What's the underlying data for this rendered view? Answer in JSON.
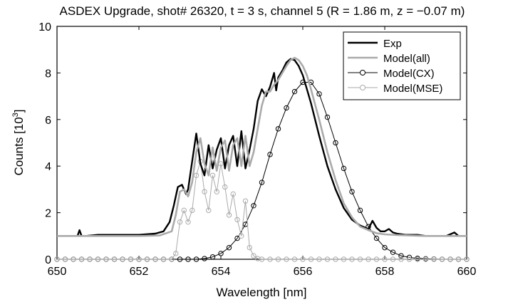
{
  "chart_data": {
    "type": "line",
    "title": "ASDEX Upgrade, shot# 26320, t = 3 s, channel 5 (R = 1.86 m, z = −0.07 m)",
    "xlabel": "Wavelength [nm]",
    "ylabel": "Counts [10",
    "ylabel_sup": "3",
    "ylabel_close": "]",
    "xlim": [
      650,
      660
    ],
    "ylim": [
      0,
      10
    ],
    "xticks": [
      650,
      652,
      654,
      656,
      658,
      660
    ],
    "yticks": [
      0,
      2,
      4,
      6,
      8,
      10
    ],
    "grid": false,
    "legend": {
      "position": "top-right"
    },
    "series": [
      {
        "name": "Exp",
        "color": "#000000",
        "marker": "none",
        "x": [
          650.0,
          650.5,
          650.55,
          650.6,
          650.7,
          651.0,
          651.5,
          652.0,
          652.4,
          652.6,
          652.75,
          652.85,
          652.95,
          653.05,
          653.15,
          653.2,
          653.3,
          653.4,
          653.5,
          653.6,
          653.7,
          653.8,
          653.9,
          654.0,
          654.1,
          654.2,
          654.3,
          654.4,
          654.5,
          654.6,
          654.7,
          654.8,
          654.9,
          655.0,
          655.1,
          655.2,
          655.3,
          655.35,
          655.4,
          655.5,
          655.6,
          655.7,
          655.8,
          655.9,
          656.0,
          656.1,
          656.2,
          656.4,
          656.6,
          656.8,
          657.0,
          657.2,
          657.4,
          657.6,
          657.7,
          657.8,
          657.9,
          658.0,
          658.1,
          658.2,
          658.3,
          658.5,
          658.8,
          659.0,
          659.3,
          659.5,
          659.7,
          659.8,
          660.0
        ],
        "y": [
          1.0,
          1.0,
          1.25,
          1.0,
          1.0,
          1.05,
          1.05,
          1.05,
          1.1,
          1.2,
          1.6,
          2.3,
          3.1,
          3.2,
          2.8,
          3.0,
          4.2,
          5.4,
          4.1,
          3.6,
          4.9,
          3.9,
          4.7,
          5.2,
          3.9,
          4.9,
          5.3,
          4.0,
          5.5,
          3.9,
          4.7,
          5.6,
          6.8,
          7.3,
          7.0,
          7.4,
          8.0,
          7.25,
          7.8,
          8.1,
          8.45,
          8.6,
          8.55,
          8.3,
          7.9,
          7.3,
          6.7,
          5.3,
          4.0,
          3.0,
          2.2,
          1.7,
          1.45,
          1.3,
          1.65,
          1.35,
          1.2,
          1.2,
          1.3,
          1.15,
          1.1,
          1.05,
          1.05,
          1.0,
          1.0,
          1.0,
          1.15,
          1.0,
          1.0
        ]
      },
      {
        "name": "Model(all)",
        "color": "#aaaaaa",
        "marker": "none",
        "x": [
          650.0,
          651.0,
          652.0,
          652.5,
          652.8,
          652.9,
          653.0,
          653.1,
          653.2,
          653.3,
          653.4,
          653.5,
          653.6,
          653.7,
          653.8,
          653.9,
          654.0,
          654.1,
          654.2,
          654.3,
          654.4,
          654.5,
          654.6,
          654.7,
          654.8,
          654.9,
          655.0,
          655.1,
          655.2,
          655.3,
          655.4,
          655.5,
          655.6,
          655.7,
          655.8,
          655.9,
          656.0,
          656.1,
          656.2,
          656.4,
          656.6,
          656.8,
          657.0,
          657.2,
          657.4,
          657.6,
          657.8,
          658.0,
          658.3,
          658.6,
          659.0,
          659.5,
          660.0
        ],
        "y": [
          1.0,
          1.0,
          1.0,
          1.02,
          1.2,
          1.9,
          2.9,
          3.0,
          2.7,
          3.3,
          4.6,
          5.2,
          4.1,
          3.6,
          4.8,
          3.8,
          4.8,
          5.1,
          3.8,
          4.9,
          5.2,
          4.0,
          5.3,
          4.0,
          4.6,
          5.6,
          6.6,
          7.2,
          7.2,
          7.5,
          7.7,
          8.0,
          8.3,
          8.55,
          8.65,
          8.55,
          8.3,
          7.9,
          7.3,
          6.0,
          4.6,
          3.4,
          2.4,
          1.8,
          1.4,
          1.25,
          1.12,
          1.07,
          1.04,
          1.02,
          1.0,
          1.0,
          1.0
        ]
      },
      {
        "name": "Model(CX)",
        "color": "#000000",
        "marker": "circle",
        "x": [
          650.0,
          650.2,
          650.4,
          650.6,
          650.8,
          651.0,
          651.2,
          651.4,
          651.6,
          651.8,
          652.0,
          652.2,
          652.4,
          652.6,
          652.8,
          653.0,
          653.2,
          653.4,
          653.6,
          653.8,
          654.0,
          654.2,
          654.4,
          654.6,
          654.8,
          655.0,
          655.2,
          655.4,
          655.6,
          655.8,
          656.0,
          656.2,
          656.4,
          656.6,
          656.8,
          657.0,
          657.2,
          657.4,
          657.6,
          657.8,
          658.0,
          658.2,
          658.4,
          658.6,
          658.8,
          659.0,
          659.2,
          659.4,
          659.6,
          659.8,
          660.0
        ],
        "y": [
          0,
          0,
          0,
          0,
          0,
          0,
          0,
          0,
          0,
          0,
          0,
          0,
          0,
          0,
          0,
          0,
          0,
          0,
          0.03,
          0.1,
          0.25,
          0.5,
          0.9,
          1.5,
          2.3,
          3.3,
          4.5,
          5.6,
          6.5,
          7.2,
          7.6,
          7.6,
          7.1,
          6.1,
          5.0,
          3.9,
          2.9,
          2.1,
          1.4,
          0.9,
          0.5,
          0.3,
          0.15,
          0.08,
          0.04,
          0.02,
          0.01,
          0,
          0,
          0,
          0
        ]
      },
      {
        "name": "Model(MSE)",
        "color": "#aaaaaa",
        "marker": "circle",
        "x": [
          650.0,
          650.2,
          650.4,
          650.6,
          650.8,
          651.0,
          651.2,
          651.4,
          651.6,
          651.8,
          652.0,
          652.2,
          652.4,
          652.6,
          652.8,
          652.9,
          653.0,
          653.1,
          653.2,
          653.3,
          653.4,
          653.5,
          653.6,
          653.7,
          653.8,
          653.9,
          654.0,
          654.1,
          654.2,
          654.3,
          654.4,
          654.5,
          654.6,
          654.7,
          654.8,
          654.9,
          655.0,
          655.2,
          655.4,
          655.6,
          655.8,
          656.0,
          656.2,
          656.4,
          656.6,
          656.8,
          657.0,
          657.2,
          657.4,
          657.6,
          657.8,
          658.0,
          658.2,
          658.4,
          658.6,
          658.8,
          659.0,
          659.2,
          659.4,
          659.6,
          659.8,
          660.0
        ],
        "y": [
          0,
          0,
          0,
          0,
          0,
          0,
          0,
          0,
          0,
          0,
          0,
          0,
          0,
          0,
          0,
          0.25,
          1.6,
          2.1,
          1.6,
          2.1,
          3.6,
          4.2,
          2.9,
          2.1,
          3.6,
          2.9,
          4.1,
          3.1,
          1.9,
          2.8,
          1.7,
          1.0,
          2.5,
          0.5,
          0.15,
          0.03,
          0,
          0,
          0,
          0,
          0,
          0,
          0,
          0,
          0,
          0,
          0,
          0,
          0,
          0,
          0,
          0,
          0,
          0,
          0,
          0,
          0,
          0,
          0,
          0,
          0,
          0
        ]
      }
    ]
  }
}
